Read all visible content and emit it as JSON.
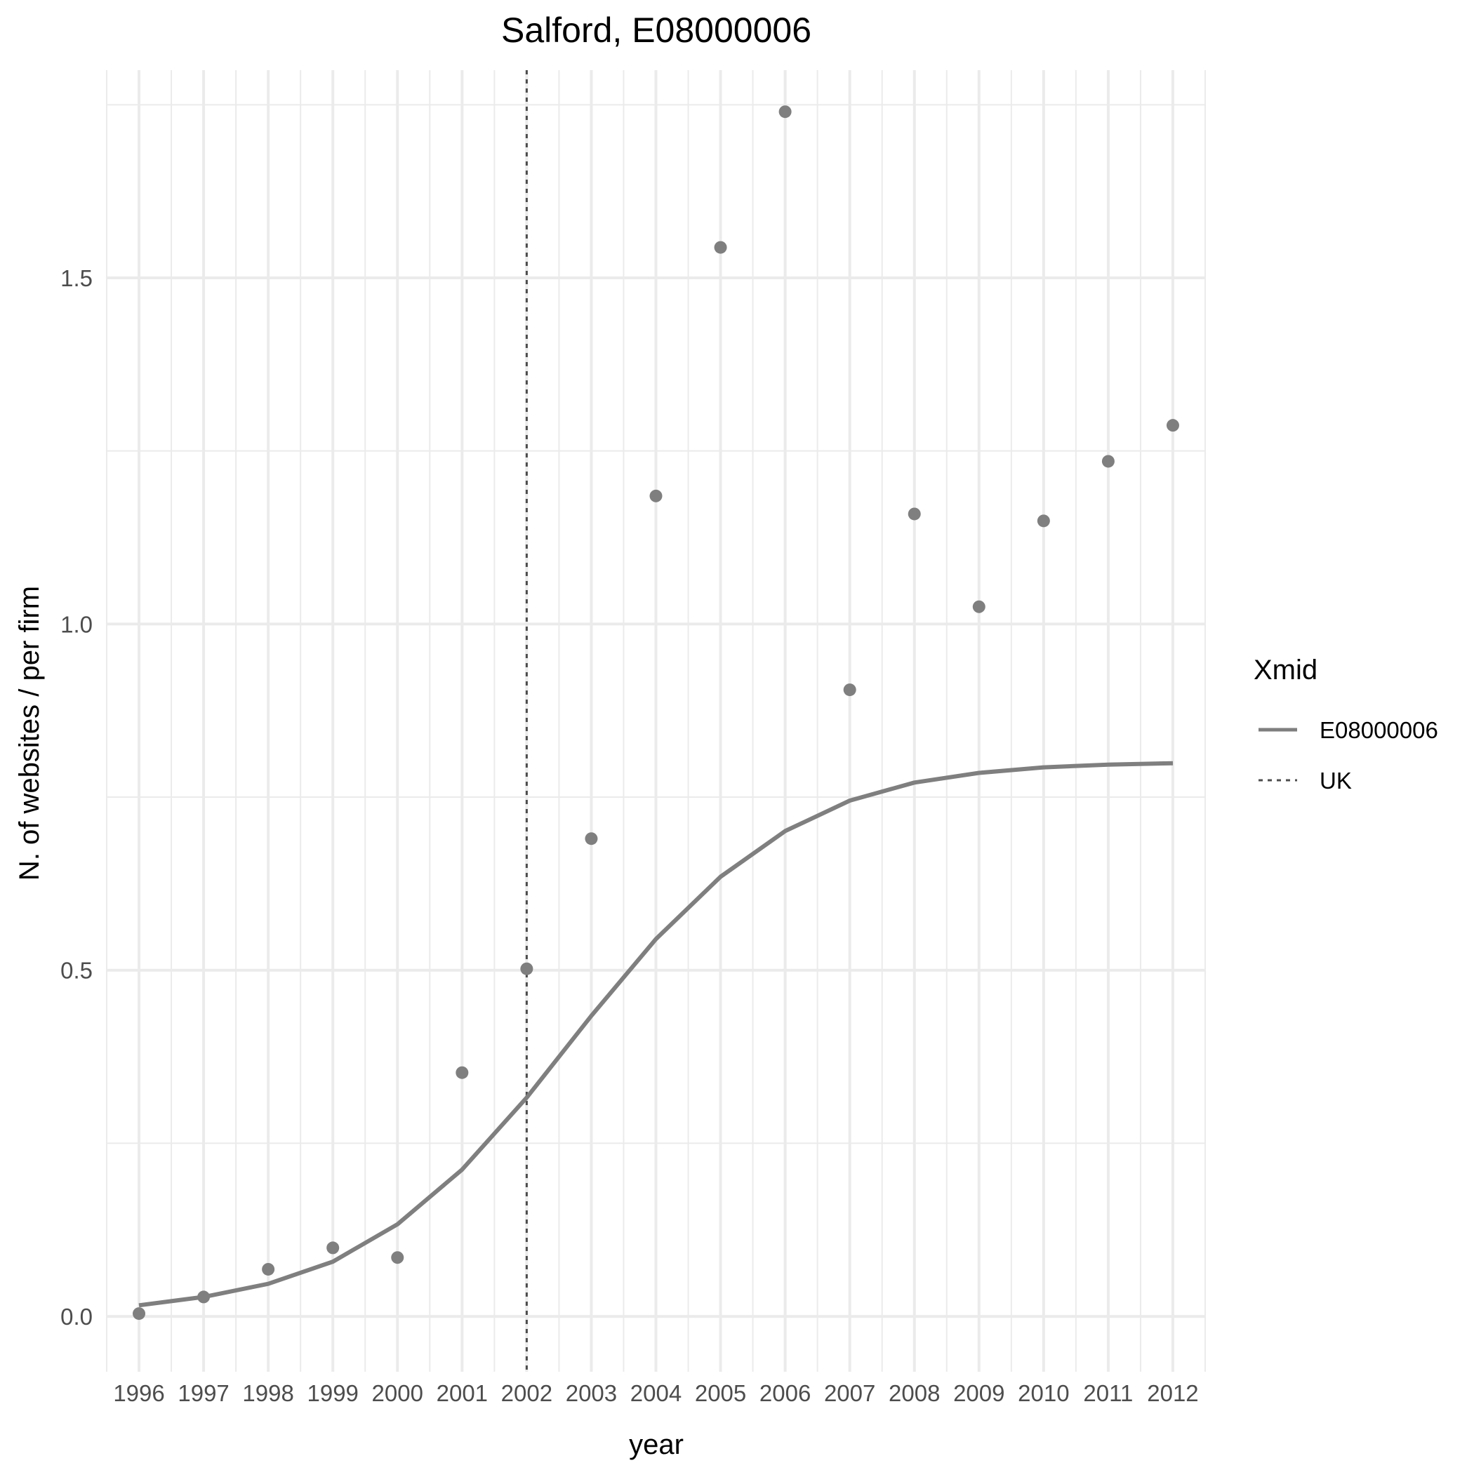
{
  "chart_data": {
    "type": "line",
    "title": "Salford, E08000006",
    "xlabel": "year",
    "ylabel": "N. of websites / per firm",
    "x": [
      1996,
      1997,
      1998,
      1999,
      2000,
      2001,
      2002,
      2003,
      2004,
      2005,
      2006,
      2007,
      2008,
      2009,
      2010,
      2011,
      2012
    ],
    "x_tick_labels": [
      "1996",
      "1997",
      "1998",
      "1999",
      "2000",
      "2001",
      "2002",
      "2003",
      "2004",
      "2005",
      "2006",
      "2007",
      "2008",
      "2009",
      "2010",
      "2011",
      "2012"
    ],
    "y_ticks": [
      0.0,
      0.5,
      1.0,
      1.5
    ],
    "y_tick_labels": [
      "0.0",
      "0.5",
      "1.0",
      "1.5"
    ],
    "xlim": [
      1995.5,
      2012.5
    ],
    "ylim": [
      -0.08,
      1.8
    ],
    "grid": true,
    "points": [
      0.004,
      0.028,
      0.068,
      0.099,
      0.085,
      0.352,
      0.502,
      0.69,
      1.185,
      1.544,
      1.74,
      0.905,
      1.159,
      1.025,
      1.149,
      1.235,
      1.287
    ],
    "series": [
      {
        "name": "E08000006",
        "style": "solid",
        "color": "#7f7f7f",
        "values": [
          0.016,
          0.028,
          0.047,
          0.079,
          0.133,
          0.212,
          0.316,
          0.434,
          0.545,
          0.635,
          0.701,
          0.745,
          0.771,
          0.785,
          0.793,
          0.797,
          0.799
        ]
      }
    ],
    "vline": {
      "name": "UK",
      "style": "dotted",
      "x": 2002,
      "color": "#4d4d4d"
    },
    "legend": {
      "title": "Xmid",
      "position": "right",
      "entries": [
        {
          "label": "E08000006",
          "style": "solid"
        },
        {
          "label": "UK",
          "style": "dotted"
        }
      ]
    },
    "colors": {
      "line": "#7f7f7f",
      "points": "#7f7f7f",
      "vline": "#4d4d4d",
      "grid": "#ebebeb",
      "tick_text": "#4d4d4d"
    }
  }
}
